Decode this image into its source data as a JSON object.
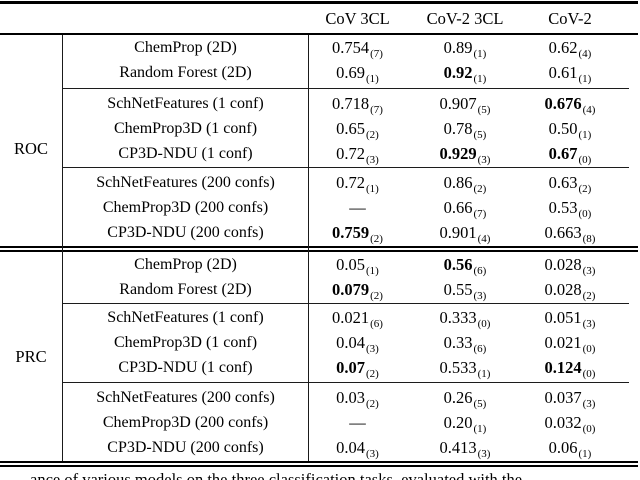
{
  "table": {
    "col_headers": [
      "CoV 3CL",
      "CoV-2 3CL",
      "CoV-2"
    ],
    "row_blocks": [
      {
        "metric": "ROC",
        "groups": [
          {
            "rows": [
              {
                "model": "ChemProp (2D)",
                "values": [
                  {
                    "v": "0.754",
                    "sub": "7",
                    "bold": false
                  },
                  {
                    "v": "0.89",
                    "sub": "1",
                    "bold": false
                  },
                  {
                    "v": "0.62",
                    "sub": "4",
                    "bold": false
                  }
                ]
              },
              {
                "model": "Random Forest (2D)",
                "values": [
                  {
                    "v": "0.69",
                    "sub": "1",
                    "bold": false
                  },
                  {
                    "v": "0.92",
                    "sub": "1",
                    "bold": true
                  },
                  {
                    "v": "0.61",
                    "sub": "1",
                    "bold": false
                  }
                ]
              }
            ]
          },
          {
            "rows": [
              {
                "model": "SchNetFeatures (1 conf)",
                "values": [
                  {
                    "v": "0.718",
                    "sub": "7",
                    "bold": false
                  },
                  {
                    "v": "0.907",
                    "sub": "5",
                    "bold": false
                  },
                  {
                    "v": "0.676",
                    "sub": "4",
                    "bold": true
                  }
                ]
              },
              {
                "model": "ChemProp3D (1 conf)",
                "values": [
                  {
                    "v": "0.65",
                    "sub": "2",
                    "bold": false
                  },
                  {
                    "v": "0.78",
                    "sub": "5",
                    "bold": false
                  },
                  {
                    "v": "0.50",
                    "sub": "1",
                    "bold": false
                  }
                ]
              },
              {
                "model": "CP3D-NDU (1 conf)",
                "values": [
                  {
                    "v": "0.72",
                    "sub": "3",
                    "bold": false
                  },
                  {
                    "v": "0.929",
                    "sub": "3",
                    "bold": true
                  },
                  {
                    "v": "0.67",
                    "sub": "0",
                    "bold": true
                  }
                ]
              }
            ]
          },
          {
            "rows": [
              {
                "model": "SchNetFeatures (200 confs)",
                "values": [
                  {
                    "v": "0.72",
                    "sub": "1",
                    "bold": false
                  },
                  {
                    "v": "0.86",
                    "sub": "2",
                    "bold": false
                  },
                  {
                    "v": "0.63",
                    "sub": "2",
                    "bold": false
                  }
                ]
              },
              {
                "model": "ChemProp3D (200 confs)",
                "values": [
                  null,
                  {
                    "v": "0.66",
                    "sub": "7",
                    "bold": false
                  },
                  {
                    "v": "0.53",
                    "sub": "0",
                    "bold": false
                  }
                ]
              },
              {
                "model": "CP3D-NDU (200 confs)",
                "values": [
                  {
                    "v": "0.759",
                    "sub": "2",
                    "bold": true
                  },
                  {
                    "v": "0.901",
                    "sub": "4",
                    "bold": false
                  },
                  {
                    "v": "0.663",
                    "sub": "8",
                    "bold": false
                  }
                ]
              }
            ]
          }
        ]
      },
      {
        "metric": "PRC",
        "groups": [
          {
            "rows": [
              {
                "model": "ChemProp (2D)",
                "values": [
                  {
                    "v": "0.05",
                    "sub": "1",
                    "bold": false
                  },
                  {
                    "v": "0.56",
                    "sub": "6",
                    "bold": true
                  },
                  {
                    "v": "0.028",
                    "sub": "3",
                    "bold": false
                  }
                ]
              },
              {
                "model": "Random Forest (2D)",
                "values": [
                  {
                    "v": "0.079",
                    "sub": "2",
                    "bold": true
                  },
                  {
                    "v": "0.55",
                    "sub": "3",
                    "bold": false
                  },
                  {
                    "v": "0.028",
                    "sub": "2",
                    "bold": false
                  }
                ]
              }
            ]
          },
          {
            "rows": [
              {
                "model": "SchNetFeatures (1 conf)",
                "values": [
                  {
                    "v": "0.021",
                    "sub": "6",
                    "bold": false
                  },
                  {
                    "v": "0.333",
                    "sub": "0",
                    "bold": false
                  },
                  {
                    "v": "0.051",
                    "sub": "3",
                    "bold": false
                  }
                ]
              },
              {
                "model": "ChemProp3D (1 conf)",
                "values": [
                  {
                    "v": "0.04",
                    "sub": "3",
                    "bold": false
                  },
                  {
                    "v": "0.33",
                    "sub": "6",
                    "bold": false
                  },
                  {
                    "v": "0.021",
                    "sub": "0",
                    "bold": false
                  }
                ]
              },
              {
                "model": "CP3D-NDU (1 conf)",
                "values": [
                  {
                    "v": "0.07",
                    "sub": "2",
                    "bold": true
                  },
                  {
                    "v": "0.533",
                    "sub": "1",
                    "bold": false
                  },
                  {
                    "v": "0.124",
                    "sub": "0",
                    "bold": true
                  }
                ]
              }
            ]
          },
          {
            "rows": [
              {
                "model": "SchNetFeatures (200 confs)",
                "values": [
                  {
                    "v": "0.03",
                    "sub": "2",
                    "bold": false
                  },
                  {
                    "v": "0.26",
                    "sub": "5",
                    "bold": false
                  },
                  {
                    "v": "0.037",
                    "sub": "3",
                    "bold": false
                  }
                ]
              },
              {
                "model": "ChemProp3D (200 confs)",
                "values": [
                  null,
                  {
                    "v": "0.20",
                    "sub": "1",
                    "bold": false
                  },
                  {
                    "v": "0.032",
                    "sub": "0",
                    "bold": false
                  }
                ]
              },
              {
                "model": "CP3D-NDU (200 confs)",
                "values": [
                  {
                    "v": "0.04",
                    "sub": "3",
                    "bold": false
                  },
                  {
                    "v": "0.413",
                    "sub": "3",
                    "bold": false
                  },
                  {
                    "v": "0.06",
                    "sub": "1",
                    "bold": false
                  }
                ]
              }
            ]
          }
        ]
      }
    ],
    "missing_value_glyph": "—"
  },
  "caption_fragment": "ance of various models on the three classification tasks, evaluated with the"
}
